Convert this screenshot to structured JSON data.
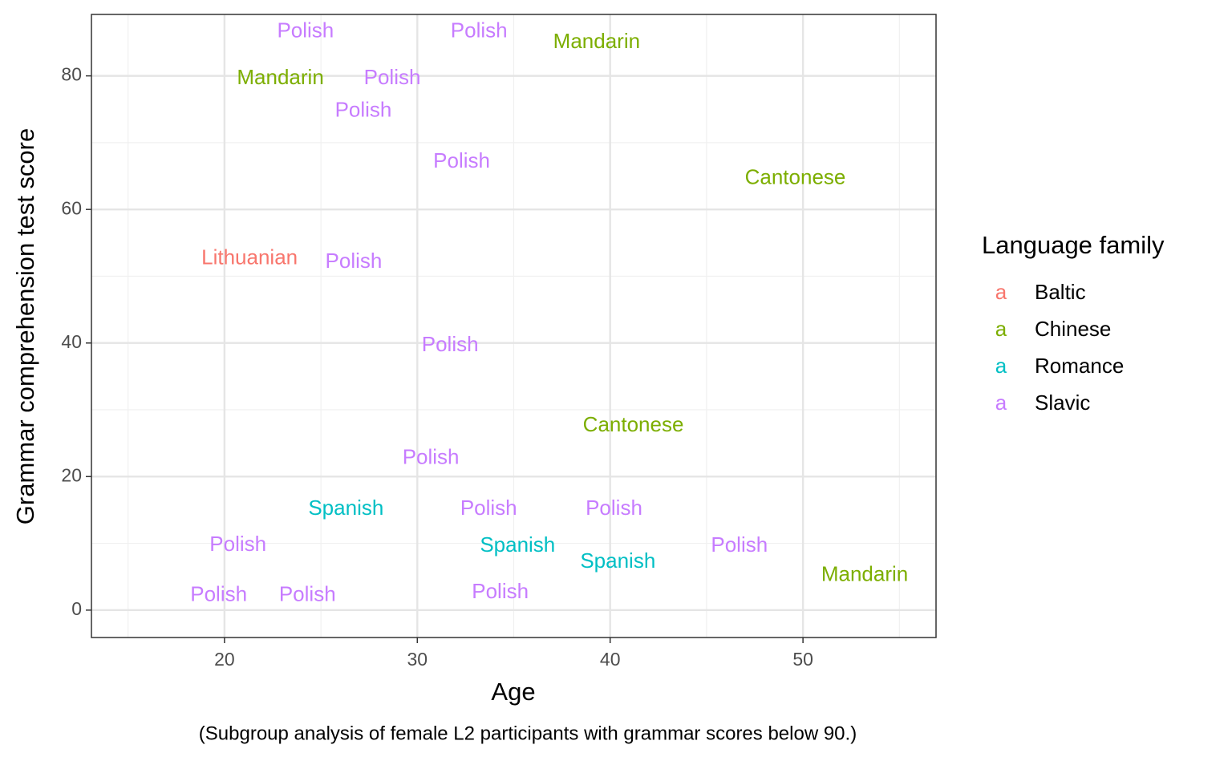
{
  "chart_data": {
    "type": "text-scatter",
    "x_label": "Age",
    "y_label": "Grammar comprehension test score",
    "caption": "(Subgroup analysis of female L2 participants with grammar scores below 90.)",
    "legend_title": "Language family",
    "legend_key": "a",
    "legend_position": "right",
    "xlim": [
      13.1,
      56.9
    ],
    "ylim": [
      -4.1,
      89.2
    ],
    "xticks": [
      20,
      30,
      40,
      50
    ],
    "yticks": [
      0,
      20,
      40,
      60,
      80
    ],
    "xminor": [
      15,
      25,
      35,
      45,
      55
    ],
    "yminor": [
      10,
      30,
      50,
      70
    ],
    "grid": true,
    "series": [
      {
        "name": "Baltic",
        "color": "#F8766D",
        "labels": [
          "Lithuanian"
        ],
        "x": [
          21.3
        ],
        "y": [
          52.6
        ]
      },
      {
        "name": "Chinese",
        "color": "#7CAE00",
        "labels": [
          "Mandarin",
          "Mandarin",
          "Cantonese",
          "Cantonese",
          "Mandarin"
        ],
        "x": [
          39.3,
          22.9,
          49.6,
          41.2,
          53.2
        ],
        "y": [
          85.0,
          79.6,
          64.6,
          27.6,
          5.2
        ]
      },
      {
        "name": "Romance",
        "color": "#00BFC4",
        "labels": [
          "Spanish",
          "Spanish",
          "Spanish"
        ],
        "x": [
          26.3,
          35.2,
          40.4
        ],
        "y": [
          15.1,
          9.6,
          7.2
        ]
      },
      {
        "name": "Slavic",
        "color": "#C77CFF",
        "labels": [
          "Polish",
          "Polish",
          "Polish",
          "Polish",
          "Polish",
          "Polish",
          "Polish",
          "Polish",
          "Polish",
          "Polish",
          "Polish",
          "Polish",
          "Polish",
          "Polish",
          "Polish"
        ],
        "x": [
          24.2,
          33.2,
          28.7,
          27.2,
          32.3,
          26.7,
          31.7,
          30.7,
          33.7,
          40.2,
          20.7,
          46.7,
          19.7,
          24.3,
          34.3
        ],
        "y": [
          86.6,
          86.6,
          79.6,
          74.7,
          67.1,
          52.1,
          39.6,
          22.7,
          15.1,
          15.1,
          9.7,
          9.6,
          2.2,
          2.2,
          2.6
        ]
      }
    ]
  }
}
